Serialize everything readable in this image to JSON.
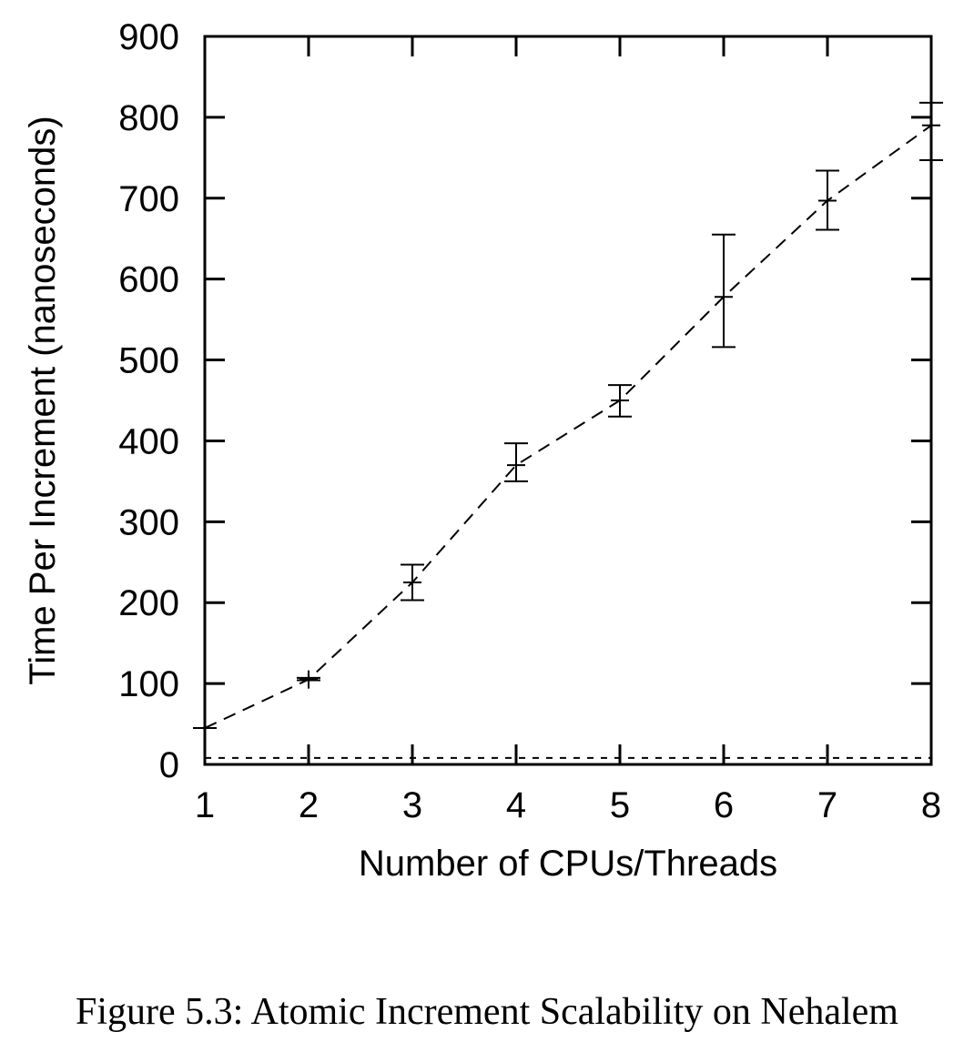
{
  "caption": "Figure 5.3: Atomic Increment Scalability on Nehalem",
  "chart_data": {
    "type": "line",
    "xlabel": "Number of CPUs/Threads",
    "ylabel": "Time Per Increment (nanoseconds)",
    "xlim": [
      1,
      8
    ],
    "ylim": [
      0,
      900
    ],
    "x_ticks": [
      1,
      2,
      3,
      4,
      5,
      6,
      7,
      8
    ],
    "y_ticks": [
      0,
      100,
      200,
      300,
      400,
      500,
      600,
      700,
      800,
      900
    ],
    "grid": false,
    "legend": "none",
    "series": [
      {
        "style": "dashed",
        "error_bars": true,
        "x": [
          1,
          2,
          3,
          4,
          5,
          6,
          7,
          8
        ],
        "y": [
          45,
          105,
          225,
          370,
          450,
          578,
          697,
          790
        ],
        "y_low": [
          45,
          104,
          203,
          350,
          430,
          516,
          661,
          747
        ],
        "y_high": [
          45,
          107,
          247,
          397,
          469,
          655,
          734,
          818
        ]
      },
      {
        "style": "dotted",
        "error_bars": false,
        "x": [
          1,
          8
        ],
        "y": [
          8,
          8
        ]
      }
    ]
  }
}
